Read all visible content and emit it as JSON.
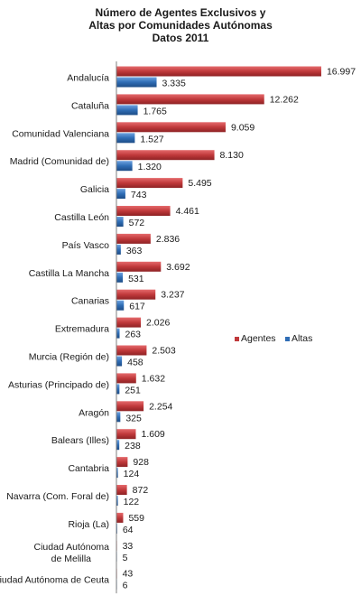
{
  "chart_data": {
    "type": "bar",
    "orientation": "horizontal",
    "title": [
      "Número de Agentes Exclusivos y",
      "Altas por Comunidades Autónomas",
      "Datos 2011"
    ],
    "categories": [
      "Andalucía",
      "Cataluña",
      "Comunidad Valenciana",
      "Madrid (Comunidad de)",
      "Galicia",
      "Castilla León",
      "País Vasco",
      "Castilla La Mancha",
      "Canarias",
      "Extremadura",
      "Murcia (Región de)",
      "Asturias (Principado de)",
      "Aragón",
      "Balears (Illes)",
      "Cantabria",
      "Navarra (Com. Foral de)",
      "Rioja (La)",
      "Ciudad Autónoma de Melilla",
      "Ciudad Autónoma de Ceuta"
    ],
    "series": [
      {
        "name": "Agentes",
        "color": "#c0393b",
        "values": [
          16997,
          12262,
          9059,
          8130,
          5495,
          4461,
          2836,
          3692,
          3237,
          2026,
          2503,
          1632,
          2254,
          1609,
          928,
          872,
          559,
          33,
          43
        ],
        "labels": [
          "16.997",
          "12.262",
          "9.059",
          "8.130",
          "5.495",
          "4.461",
          "2.836",
          "3.692",
          "3.237",
          "2.026",
          "2.503",
          "1.632",
          "2.254",
          "1.609",
          "928",
          "872",
          "559",
          "33",
          "43"
        ]
      },
      {
        "name": "Altas",
        "color": "#2f6db5",
        "values": [
          3335,
          1765,
          1527,
          1320,
          743,
          572,
          363,
          531,
          617,
          263,
          458,
          251,
          325,
          238,
          124,
          122,
          64,
          5,
          6
        ],
        "labels": [
          "3.335",
          "1.765",
          "1.527",
          "1.320",
          "743",
          "572",
          "363",
          "531",
          "617",
          "263",
          "458",
          "251",
          "325",
          "238",
          "124",
          "122",
          "64",
          "5",
          "6"
        ]
      }
    ],
    "xlim": [
      0,
      17000
    ],
    "grid": false,
    "legend_position": "right"
  }
}
